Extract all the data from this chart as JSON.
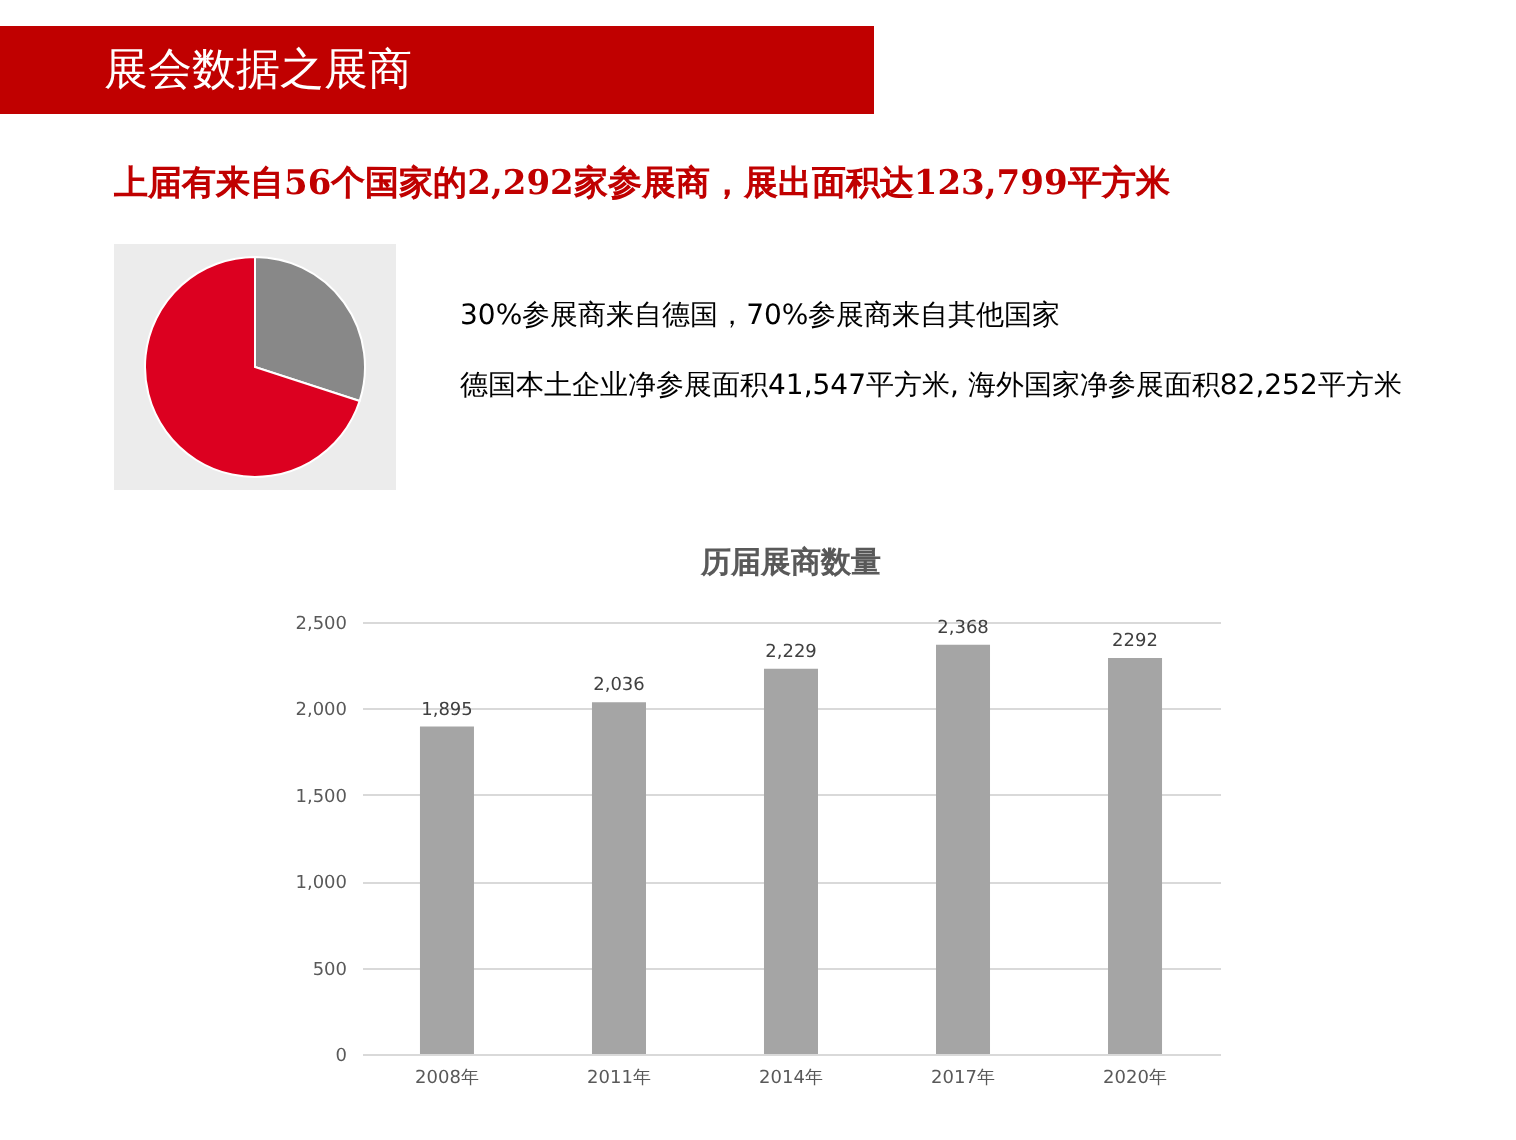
{
  "chart_data": [
    {
      "type": "pie",
      "title": "展会数据之展商",
      "subtitle": "上届有来自56个国家的2,292家参展商，展出面积达123,799平方米",
      "categories": [
        null,
        null
      ],
      "values": [
        30,
        70
      ],
      "colors": [
        "#888888",
        "#dc0020"
      ],
      "annotations": [
        "30%参展商来自德国，70%参展商来自其他国家",
        "德国本土企业净参展面积41,547平方米, 海外国家净参展面积82,252平方米"
      ]
    },
    {
      "type": "bar",
      "title": "历届展商数量",
      "categories": [
        "2008年",
        "2011年",
        "2014年",
        "2017年",
        "2020年"
      ],
      "values": [
        1895,
        2036,
        2229,
        2368,
        2292
      ],
      "color": "#a5a5a5",
      "ylim": [
        0,
        2500
      ],
      "yticks": [
        0,
        500,
        {
          "value": 1000,
          "label": "1,000"
        },
        {
          "value": 1500,
          "label": "1,500"
        },
        {
          "value": 2000,
          "label": "2,000"
        },
        {
          "value": 2500,
          "label": "2,500"
        }
      ],
      "grid": "y",
      "value_labels": [
        "1,895",
        "2,036",
        "2,229",
        "2,368",
        "2292"
      ]
    }
  ]
}
